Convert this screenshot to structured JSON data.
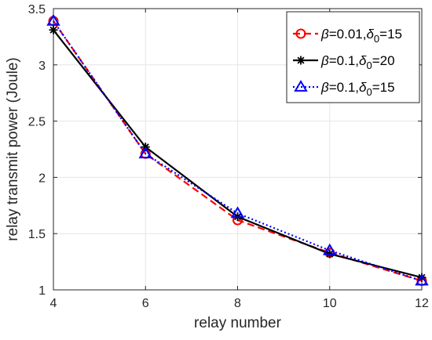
{
  "chart_data": {
    "type": "line",
    "xlabel": "relay number",
    "ylabel": "relay transmit power (Joule)",
    "xlim": [
      4,
      12
    ],
    "ylim": [
      1,
      3.5
    ],
    "x_ticks": [
      "4",
      "6",
      "8",
      "10",
      "12"
    ],
    "y_ticks": [
      "1",
      "1.5",
      "2",
      "2.5",
      "3",
      "3.5"
    ],
    "x": [
      4,
      6,
      8,
      10,
      12
    ],
    "grid": true,
    "legend_position": "top-right",
    "series": [
      {
        "name": "β=0.01,δ0=15",
        "beta": "0.01",
        "delta0": "15",
        "color": "#ff0000",
        "line_style": "dashed",
        "marker": "circle",
        "values": [
          3.39,
          2.21,
          1.62,
          1.33,
          1.08
        ]
      },
      {
        "name": "β=0.1,δ0=20",
        "beta": "0.1",
        "delta0": "20",
        "color": "#000000",
        "line_style": "solid",
        "marker": "asterisk",
        "values": [
          3.31,
          2.27,
          1.65,
          1.32,
          1.11
        ]
      },
      {
        "name": "β=0.1,δ0=15",
        "beta": "0.1",
        "delta0": "15",
        "color": "#0000ff",
        "line_style": "dotted",
        "marker": "triangle",
        "values": [
          3.39,
          2.21,
          1.68,
          1.35,
          1.08
        ]
      }
    ]
  }
}
